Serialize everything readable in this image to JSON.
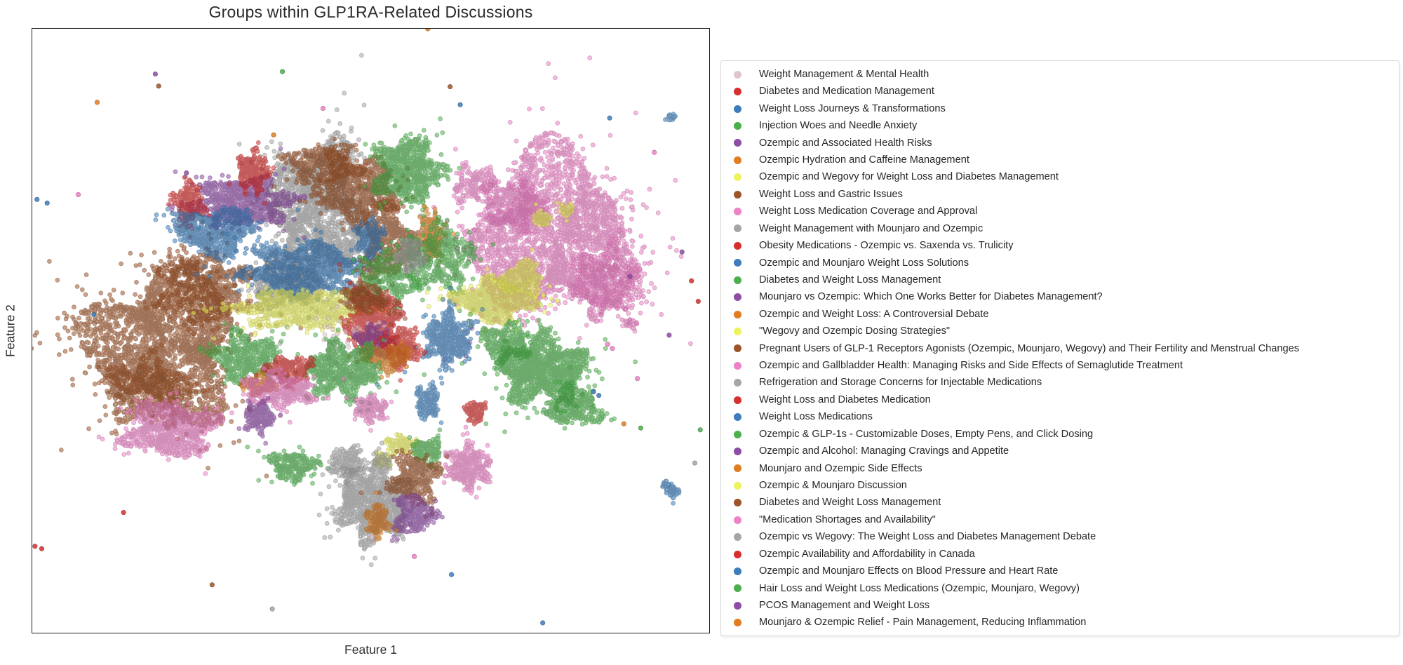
{
  "chart_data": {
    "type": "scatter",
    "title": "Groups within GLP1RA-Related Discussions",
    "xlabel": "Feature 1",
    "ylabel": "Feature 2",
    "axes": {
      "ticks_visible": false,
      "frame": "box",
      "gridlines": false
    },
    "palette": {
      "pale": "#e0c4d0",
      "red": "#d62f2e",
      "blue": "#3d7dbc",
      "green": "#4bb04b",
      "purple": "#8e4da6",
      "orange": "#e07d21",
      "yellow": "#edf35d",
      "brown": "#9e5429",
      "pink": "#ee82c6",
      "gray": "#a6a6a6"
    },
    "point_style": {
      "radius_px": 3.0,
      "fill_alpha": 0.55,
      "edge_alpha": 0.45
    },
    "legend": {
      "position": "right",
      "items": [
        {
          "label": "Weight Management & Mental Health",
          "color": "pale"
        },
        {
          "label": "Diabetes and Medication Management",
          "color": "red"
        },
        {
          "label": "Weight Loss Journeys & Transformations",
          "color": "blue"
        },
        {
          "label": "Injection Woes and Needle Anxiety",
          "color": "green"
        },
        {
          "label": "Ozempic and Associated Health Risks",
          "color": "purple"
        },
        {
          "label": "Ozempic Hydration and Caffeine Management",
          "color": "orange"
        },
        {
          "label": "Ozempic and Wegovy for Weight Loss and Diabetes Management",
          "color": "yellow"
        },
        {
          "label": "Weight Loss and Gastric Issues",
          "color": "brown"
        },
        {
          "label": "Weight Loss Medication Coverage and Approval",
          "color": "pink"
        },
        {
          "label": "Weight Management with Mounjaro and Ozempic",
          "color": "gray"
        },
        {
          "label": "Obesity Medications - Ozempic vs. Saxenda vs. Trulicity",
          "color": "red"
        },
        {
          "label": "Ozempic and Mounjaro Weight Loss Solutions",
          "color": "blue"
        },
        {
          "label": "Diabetes and Weight Loss Management",
          "color": "green"
        },
        {
          "label": "Mounjaro vs Ozempic: Which One Works Better for Diabetes Management?",
          "color": "purple"
        },
        {
          "label": "Ozempic and Weight Loss: A Controversial Debate",
          "color": "orange"
        },
        {
          "label": "\"Wegovy and Ozempic Dosing Strategies\"",
          "color": "yellow"
        },
        {
          "label": "Pregnant Users of GLP-1 Receptors Agonists (Ozempic, Mounjaro, Wegovy) and Their Fertility and Menstrual Changes",
          "color": "brown"
        },
        {
          "label": "Ozempic and Gallbladder Health: Managing Risks and Side Effects of Semaglutide Treatment",
          "color": "pink"
        },
        {
          "label": "Refrigeration and Storage Concerns for Injectable Medications",
          "color": "gray"
        },
        {
          "label": "Weight Loss and Diabetes Medication",
          "color": "red"
        },
        {
          "label": "Weight Loss Medications",
          "color": "blue"
        },
        {
          "label": "Ozempic & GLP-1s - Customizable Doses, Empty Pens, and Click Dosing",
          "color": "green"
        },
        {
          "label": "Ozempic and Alcohol: Managing Cravings and Appetite",
          "color": "purple"
        },
        {
          "label": "Mounjaro and Ozempic Side Effects",
          "color": "orange"
        },
        {
          "label": "Ozempic & Mounjaro Discussion",
          "color": "yellow"
        },
        {
          "label": "Diabetes and Weight Loss Management",
          "color": "brown"
        },
        {
          "label": "\"Medication Shortages and Availability\"",
          "color": "pink"
        },
        {
          "label": "Ozempic vs Wegovy: The Weight Loss and Diabetes Management Debate",
          "color": "gray"
        },
        {
          "label": "Ozempic Availability and Affordability in Canada",
          "color": "red"
        },
        {
          "label": "Ozempic and Mounjaro Effects on Blood Pressure and Heart Rate",
          "color": "blue"
        },
        {
          "label": "Hair Loss and Weight Loss Medications (Ozempic, Mounjaro, Wegovy)",
          "color": "green"
        },
        {
          "label": "PCOS Management and Weight Loss",
          "color": "purple"
        },
        {
          "label": "Mounjaro & Ozempic Relief - Pain Management, Reducing Inflammation",
          "color": "orange"
        }
      ]
    },
    "clusters_format": [
      "color",
      "x_frac",
      "y_frac",
      "rx_frac",
      "ry_frac",
      "n_points"
    ],
    "clusters": [
      [
        "brown",
        0.195,
        0.52,
        0.105,
        0.115,
        2600
      ],
      [
        "brown",
        0.255,
        0.43,
        0.06,
        0.055,
        700
      ],
      [
        "brown",
        0.17,
        0.6,
        0.06,
        0.05,
        600
      ],
      [
        "gray",
        0.42,
        0.305,
        0.068,
        0.105,
        2100
      ],
      [
        "gray",
        0.375,
        0.42,
        0.05,
        0.04,
        600
      ],
      [
        "purple",
        0.31,
        0.288,
        0.068,
        0.038,
        950
      ],
      [
        "red",
        0.327,
        0.235,
        0.022,
        0.032,
        300
      ],
      [
        "red",
        0.232,
        0.29,
        0.02,
        0.033,
        240
      ],
      [
        "blue",
        0.27,
        0.335,
        0.055,
        0.035,
        750
      ],
      [
        "blue",
        0.405,
        0.4,
        0.08,
        0.042,
        1150
      ],
      [
        "brown",
        0.48,
        0.265,
        0.055,
        0.05,
        900
      ],
      [
        "brown",
        0.43,
        0.225,
        0.05,
        0.03,
        400
      ],
      [
        "brown",
        0.525,
        0.355,
        0.035,
        0.06,
        700
      ],
      [
        "blue",
        0.5,
        0.35,
        0.018,
        0.028,
        200
      ],
      [
        "green",
        0.555,
        0.235,
        0.046,
        0.05,
        900
      ],
      [
        "pink",
        0.655,
        0.26,
        0.03,
        0.03,
        200
      ],
      [
        "pink",
        0.775,
        0.345,
        0.115,
        0.125,
        3000
      ],
      [
        "pink",
        0.845,
        0.42,
        0.045,
        0.05,
        600
      ],
      [
        "pink",
        0.71,
        0.29,
        0.04,
        0.04,
        450
      ],
      [
        "yellow",
        0.755,
        0.315,
        0.012,
        0.012,
        70
      ],
      [
        "yellow",
        0.79,
        0.3,
        0.01,
        0.01,
        50
      ],
      [
        "orange",
        0.59,
        0.345,
        0.016,
        0.036,
        300
      ],
      [
        "green",
        0.6,
        0.38,
        0.05,
        0.05,
        550
      ],
      [
        "yellow",
        0.685,
        0.45,
        0.052,
        0.032,
        1000
      ],
      [
        "yellow",
        0.725,
        0.415,
        0.03,
        0.024,
        350
      ],
      [
        "blue",
        0.615,
        0.515,
        0.032,
        0.038,
        550
      ],
      [
        "green",
        0.755,
        0.565,
        0.06,
        0.05,
        1600
      ],
      [
        "green",
        0.7,
        0.52,
        0.032,
        0.03,
        350
      ],
      [
        "green",
        0.8,
        0.625,
        0.038,
        0.03,
        420
      ],
      [
        "yellow",
        0.4,
        0.465,
        0.09,
        0.03,
        850
      ],
      [
        "green",
        0.52,
        0.42,
        0.04,
        0.05,
        350
      ],
      [
        "red",
        0.505,
        0.48,
        0.038,
        0.045,
        650
      ],
      [
        "pale",
        0.47,
        0.52,
        0.05,
        0.05,
        60
      ],
      [
        "brown",
        0.49,
        0.445,
        0.028,
        0.022,
        220
      ],
      [
        "purple",
        0.505,
        0.52,
        0.024,
        0.024,
        220
      ],
      [
        "red",
        0.545,
        0.53,
        0.025,
        0.03,
        250
      ],
      [
        "orange",
        0.525,
        0.545,
        0.032,
        0.018,
        380
      ],
      [
        "green",
        0.46,
        0.565,
        0.05,
        0.04,
        800
      ],
      [
        "green",
        0.315,
        0.545,
        0.045,
        0.035,
        550
      ],
      [
        "orange",
        0.335,
        0.59,
        0.022,
        0.014,
        170
      ],
      [
        "red",
        0.38,
        0.565,
        0.032,
        0.02,
        280
      ],
      [
        "pink",
        0.365,
        0.6,
        0.048,
        0.026,
        450
      ],
      [
        "purple",
        0.335,
        0.645,
        0.02,
        0.022,
        240
      ],
      [
        "pink",
        0.205,
        0.665,
        0.06,
        0.042,
        1000
      ],
      [
        "green",
        0.385,
        0.725,
        0.032,
        0.022,
        330
      ],
      [
        "pink",
        0.5,
        0.63,
        0.022,
        0.02,
        180
      ],
      [
        "gray",
        0.56,
        0.375,
        0.02,
        0.025,
        180
      ],
      [
        "blue",
        0.585,
        0.62,
        0.016,
        0.025,
        160
      ],
      [
        "red",
        0.655,
        0.635,
        0.014,
        0.018,
        120
      ],
      [
        "pink",
        0.645,
        0.725,
        0.03,
        0.032,
        400
      ],
      [
        "yellow",
        0.545,
        0.69,
        0.02,
        0.014,
        120
      ],
      [
        "yellow",
        0.52,
        0.715,
        0.013,
        0.012,
        80
      ],
      [
        "green",
        0.585,
        0.7,
        0.02,
        0.02,
        180
      ],
      [
        "gray",
        0.505,
        0.785,
        0.05,
        0.058,
        1300
      ],
      [
        "gray",
        0.465,
        0.72,
        0.025,
        0.025,
        200
      ],
      [
        "brown",
        0.565,
        0.745,
        0.032,
        0.038,
        420
      ],
      [
        "purple",
        0.565,
        0.805,
        0.028,
        0.03,
        330
      ],
      [
        "orange",
        0.51,
        0.815,
        0.014,
        0.026,
        180
      ],
      [
        "pink",
        0.884,
        0.488,
        0.01,
        0.008,
        30
      ],
      [
        "blue",
        0.947,
        0.768,
        0.009,
        0.01,
        45
      ],
      [
        "blue",
        0.936,
        0.755,
        0.005,
        0.005,
        15
      ],
      [
        "blue",
        0.945,
        0.147,
        0.006,
        0.006,
        18
      ]
    ],
    "outliers_format": [
      "color",
      "x_frac",
      "y_frac"
    ],
    "outliers": [
      [
        "purple",
        0.182,
        0.075
      ],
      [
        "brown",
        0.187,
        0.095
      ],
      [
        "orange",
        0.096,
        0.122
      ],
      [
        "green",
        0.37,
        0.071
      ],
      [
        "pink",
        0.43,
        0.132
      ],
      [
        "orange",
        0.585,
        0.0
      ],
      [
        "brown",
        0.618,
        0.096
      ],
      [
        "blue",
        0.633,
        0.126
      ],
      [
        "blue",
        0.854,
        0.148
      ],
      [
        "pink",
        0.068,
        0.275
      ],
      [
        "blue",
        0.007,
        0.283
      ],
      [
        "blue",
        0.022,
        0.289
      ],
      [
        "purple",
        0.228,
        0.239
      ],
      [
        "blue",
        0.091,
        0.474
      ],
      [
        "red",
        0.004,
        0.858
      ],
      [
        "red",
        0.014,
        0.862
      ],
      [
        "red",
        0.985,
        0.452
      ],
      [
        "purple",
        0.942,
        0.508
      ],
      [
        "pink",
        0.851,
        0.523
      ],
      [
        "pink",
        0.858,
        0.53
      ],
      [
        "blue",
        0.83,
        0.602
      ],
      [
        "blue",
        0.838,
        0.608
      ],
      [
        "purple",
        0.884,
        0.411
      ],
      [
        "red",
        0.975,
        0.418
      ],
      [
        "green",
        0.9,
        0.662
      ],
      [
        "gray",
        0.355,
        0.962
      ],
      [
        "blue",
        0.62,
        0.905
      ],
      [
        "blue",
        0.755,
        0.985
      ],
      [
        "pink",
        0.565,
        0.875
      ],
      [
        "pale",
        0.502,
        0.843
      ],
      [
        "brown",
        0.266,
        0.922
      ],
      [
        "red",
        0.135,
        0.802
      ],
      [
        "orange",
        0.357,
        0.176
      ],
      [
        "green",
        0.988,
        0.665
      ],
      [
        "pink",
        0.92,
        0.205
      ],
      [
        "purple",
        0.961,
        0.37
      ],
      [
        "gray",
        0.98,
        0.72
      ],
      [
        "orange",
        0.875,
        0.655
      ],
      [
        "pink",
        0.895,
        0.58
      ]
    ]
  }
}
